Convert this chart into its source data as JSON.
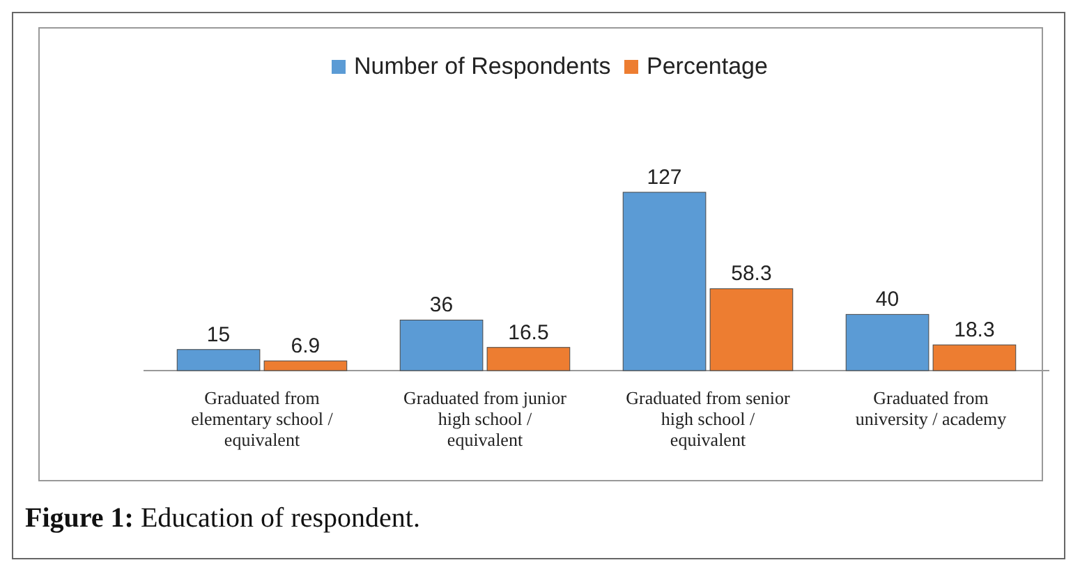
{
  "chart_data": {
    "type": "bar",
    "categories": [
      "Graduated from elementary school / equivalent",
      "Graduated from junior high school / equivalent",
      "Graduated from senior high school / equivalent",
      "Graduated from university / academy"
    ],
    "series": [
      {
        "name": "Number of Respondents",
        "color": "#5b9bd5",
        "values": [
          15,
          36,
          127,
          40
        ]
      },
      {
        "name": "Percentage",
        "color": "#ed7d31",
        "values": [
          6.9,
          16.5,
          58.3,
          18.3
        ]
      }
    ],
    "data_labels": true,
    "legend": "top",
    "grid": false,
    "annotations": [
      "Figure 1: Education of respondent."
    ]
  }
}
